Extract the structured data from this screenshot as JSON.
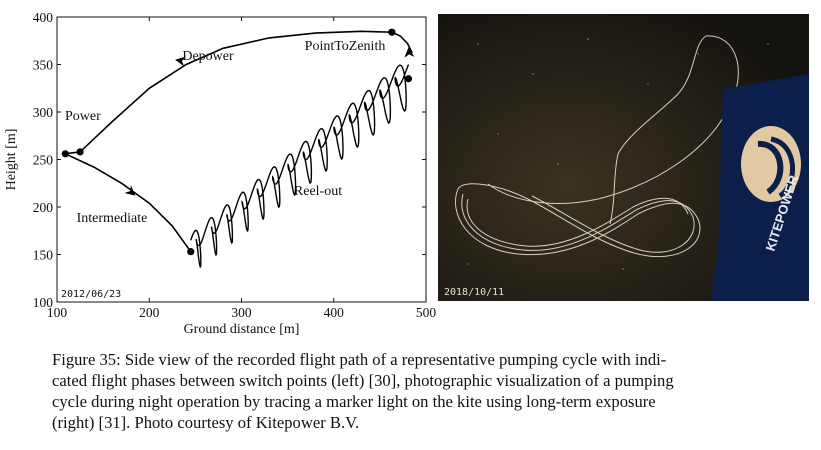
{
  "chart_data": {
    "type": "line",
    "xlabel": "Ground distance [m]",
    "ylabel": "Height [m]",
    "xlim": [
      100,
      500
    ],
    "ylim": [
      100,
      400
    ],
    "xticks": [
      "100",
      "200",
      "300",
      "400",
      "500"
    ],
    "yticks": [
      "100",
      "150",
      "200",
      "250",
      "300",
      "350",
      "400"
    ],
    "date_label": "2012/06/23",
    "phase_labels": [
      "Depower",
      "PointToZenith",
      "Power",
      "Reel-out",
      "Intermediate"
    ],
    "switch_points": [
      {
        "x": 109,
        "y": 256
      },
      {
        "x": 125,
        "y": 258
      },
      {
        "x": 463,
        "y": 384
      },
      {
        "x": 481,
        "y": 335
      },
      {
        "x": 245,
        "y": 153
      }
    ],
    "path": {
      "depower": [
        [
          125,
          258
        ],
        [
          160,
          290
        ],
        [
          200,
          325
        ],
        [
          240,
          350
        ],
        [
          280,
          367
        ],
        [
          330,
          378
        ],
        [
          380,
          383
        ],
        [
          430,
          385
        ],
        [
          463,
          384
        ]
      ],
      "point_to_zenith": [
        [
          463,
          384
        ],
        [
          472,
          380
        ],
        [
          480,
          372
        ],
        [
          485,
          362
        ]
      ],
      "power": [
        [
          109,
          256
        ],
        [
          117,
          257
        ],
        [
          125,
          258
        ]
      ],
      "intermediate": [
        [
          109,
          256
        ],
        [
          140,
          242
        ],
        [
          170,
          225
        ],
        [
          200,
          204
        ],
        [
          225,
          180
        ],
        [
          245,
          153
        ]
      ]
    }
  },
  "photo": {
    "date_label": "2018/10/11",
    "logo_text": "KITEPOWER"
  },
  "caption": {
    "lines": [
      "Figure 35: Side view of the recorded flight path of a representative pumping cycle with indi-",
      "cated flight phases between switch points (left) [30], photographic visualization of a pumping",
      "cycle during night operation by tracing a marker light on the kite using long-term exposure",
      "(right) [31]. Photo courtesy of Kitepower B.V."
    ]
  }
}
